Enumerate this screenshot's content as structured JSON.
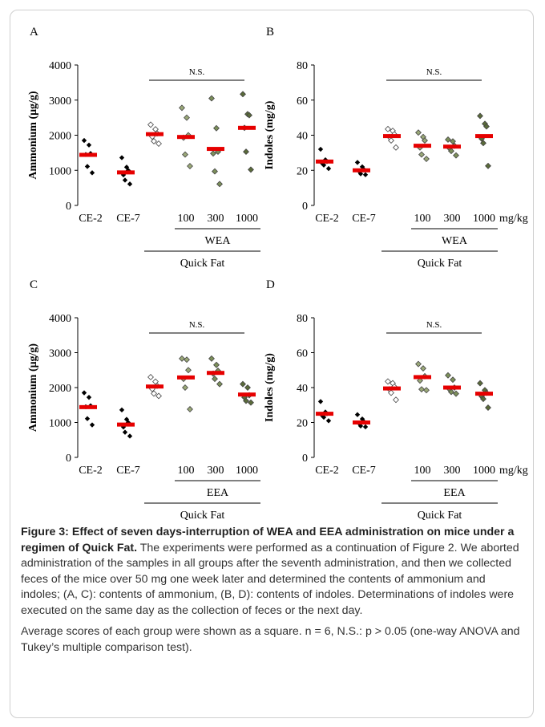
{
  "chart_data": [
    {
      "panel": "A",
      "type": "scatter",
      "ylabel": "Ammonium  (μg/g)",
      "ylim": [
        0,
        4000
      ],
      "yticks": [
        "0",
        "1000",
        "2000",
        "3000",
        "4000"
      ],
      "groups": [
        "CE-2",
        "CE-7",
        "",
        "100",
        "300",
        "1000"
      ],
      "unit_label": "",
      "bracket_label": "WEA",
      "diet_label": "Quick Fat",
      "sig_label": "N.S.",
      "points": [
        [
          1850,
          1720,
          1480,
          1450,
          1110,
          930
        ],
        [
          1360,
          1090,
          1000,
          870,
          720,
          610
        ],
        [
          2300,
          2170,
          2050,
          1960,
          1830,
          1760
        ],
        [
          2780,
          2500,
          2000,
          1930,
          1450,
          1120
        ],
        [
          3050,
          2200,
          1530,
          1480,
          970,
          610
        ],
        [
          3170,
          2600,
          2570,
          2210,
          1530,
          1020
        ]
      ],
      "means": [
        1440,
        940,
        2030,
        1950,
        1610,
        2210
      ]
    },
    {
      "panel": "B",
      "type": "scatter",
      "ylabel": "Indoles (mg/g)",
      "ylim": [
        0,
        80
      ],
      "yticks": [
        "0",
        "20",
        "40",
        "60",
        "80"
      ],
      "groups": [
        "CE-2",
        "CE-7",
        "",
        "100",
        "300",
        "1000"
      ],
      "unit_label": "mg/kg",
      "bracket_label": "WEA",
      "diet_label": "Quick Fat",
      "sig_label": "N.S.",
      "points": [
        [
          32.0,
          26.0,
          25.0,
          24.0,
          23.0,
          21.0
        ],
        [
          24.5,
          22.0,
          20.5,
          19.5,
          18.0,
          17.5
        ],
        [
          43.5,
          42.5,
          40.5,
          39.0,
          37.0,
          33.0
        ],
        [
          41.5,
          39.0,
          37.0,
          33.0,
          29.0,
          26.5
        ],
        [
          37.5,
          36.5,
          34.0,
          32.5,
          31.0,
          28.5
        ],
        [
          51.0,
          46.5,
          45.0,
          38.0,
          35.5,
          22.5
        ]
      ],
      "means": [
        25.0,
        20.0,
        39.5,
        34.0,
        33.5,
        39.5
      ]
    },
    {
      "panel": "C",
      "type": "scatter",
      "ylabel": "Ammonium  (μg/g)",
      "ylim": [
        0,
        4000
      ],
      "yticks": [
        "0",
        "1000",
        "2000",
        "3000",
        "4000"
      ],
      "groups": [
        "CE-2",
        "CE-7",
        "",
        "100",
        "300",
        "1000"
      ],
      "unit_label": "",
      "bracket_label": "EEA",
      "diet_label": "Quick Fat",
      "sig_label": "N.S.",
      "points": [
        [
          1850,
          1720,
          1480,
          1450,
          1110,
          930
        ],
        [
          1360,
          1090,
          1000,
          870,
          720,
          610
        ],
        [
          2300,
          2170,
          2050,
          1960,
          1830,
          1760
        ],
        [
          2830,
          2800,
          2500,
          2250,
          2000,
          1380
        ],
        [
          2830,
          2650,
          2480,
          2400,
          2250,
          2100
        ],
        [
          2100,
          2000,
          1780,
          1720,
          1620,
          1570
        ]
      ],
      "means": [
        1440,
        940,
        2030,
        2290,
        2420,
        1800
      ]
    },
    {
      "panel": "D",
      "type": "scatter",
      "ylabel": "Indoles (mg/g)",
      "ylim": [
        0,
        80
      ],
      "yticks": [
        "0",
        "20",
        "40",
        "60",
        "80"
      ],
      "groups": [
        "CE-2",
        "CE-7",
        "",
        "100",
        "300",
        "1000"
      ],
      "unit_label": "mg/kg",
      "bracket_label": "EEA",
      "diet_label": "Quick Fat",
      "sig_label": "N.S.",
      "points": [
        [
          32.0,
          26.0,
          25.0,
          24.0,
          23.0,
          21.0
        ],
        [
          24.5,
          22.0,
          20.5,
          19.5,
          18.0,
          17.5
        ],
        [
          43.5,
          42.5,
          40.5,
          39.0,
          37.0,
          33.0
        ],
        [
          53.5,
          51.0,
          46.5,
          44.0,
          39.0,
          38.5
        ],
        [
          47.0,
          44.5,
          40.0,
          39.0,
          37.5,
          36.5
        ],
        [
          42.5,
          38.5,
          37.0,
          35.0,
          33.5,
          28.5
        ]
      ],
      "means": [
        25.0,
        20.0,
        39.5,
        46.0,
        40.0,
        36.5
      ]
    }
  ],
  "colors": {
    "mean": "#e60000",
    "control": "#000000",
    "qf": "#ffffff",
    "low": "#9aa878",
    "mid": "#7c8f5a",
    "high": "#5a6b3a",
    "axis": "#000000"
  },
  "caption": {
    "lead": "Figure 3: Effect of seven days-interruption of WEA and EEA administration on mice under a regimen of Quick Fat.",
    "body": " The experiments were performed as a continuation of Figure 2. We aborted administration of the samples in all groups after the seventh administration, and then we collected feces of the mice over 50 mg one week later and determined the contents of ammonium and indoles; (A, C): contents of ammonium, (B, D): contents of indoles. Determinations of indoles were executed on the same day as the collection of feces or the next day.",
    "note": "Average scores of each group were shown as a square. n = 6, N.S.: p > 0.05 (one-way ANOVA and Tukey’s multiple comparison test)."
  }
}
